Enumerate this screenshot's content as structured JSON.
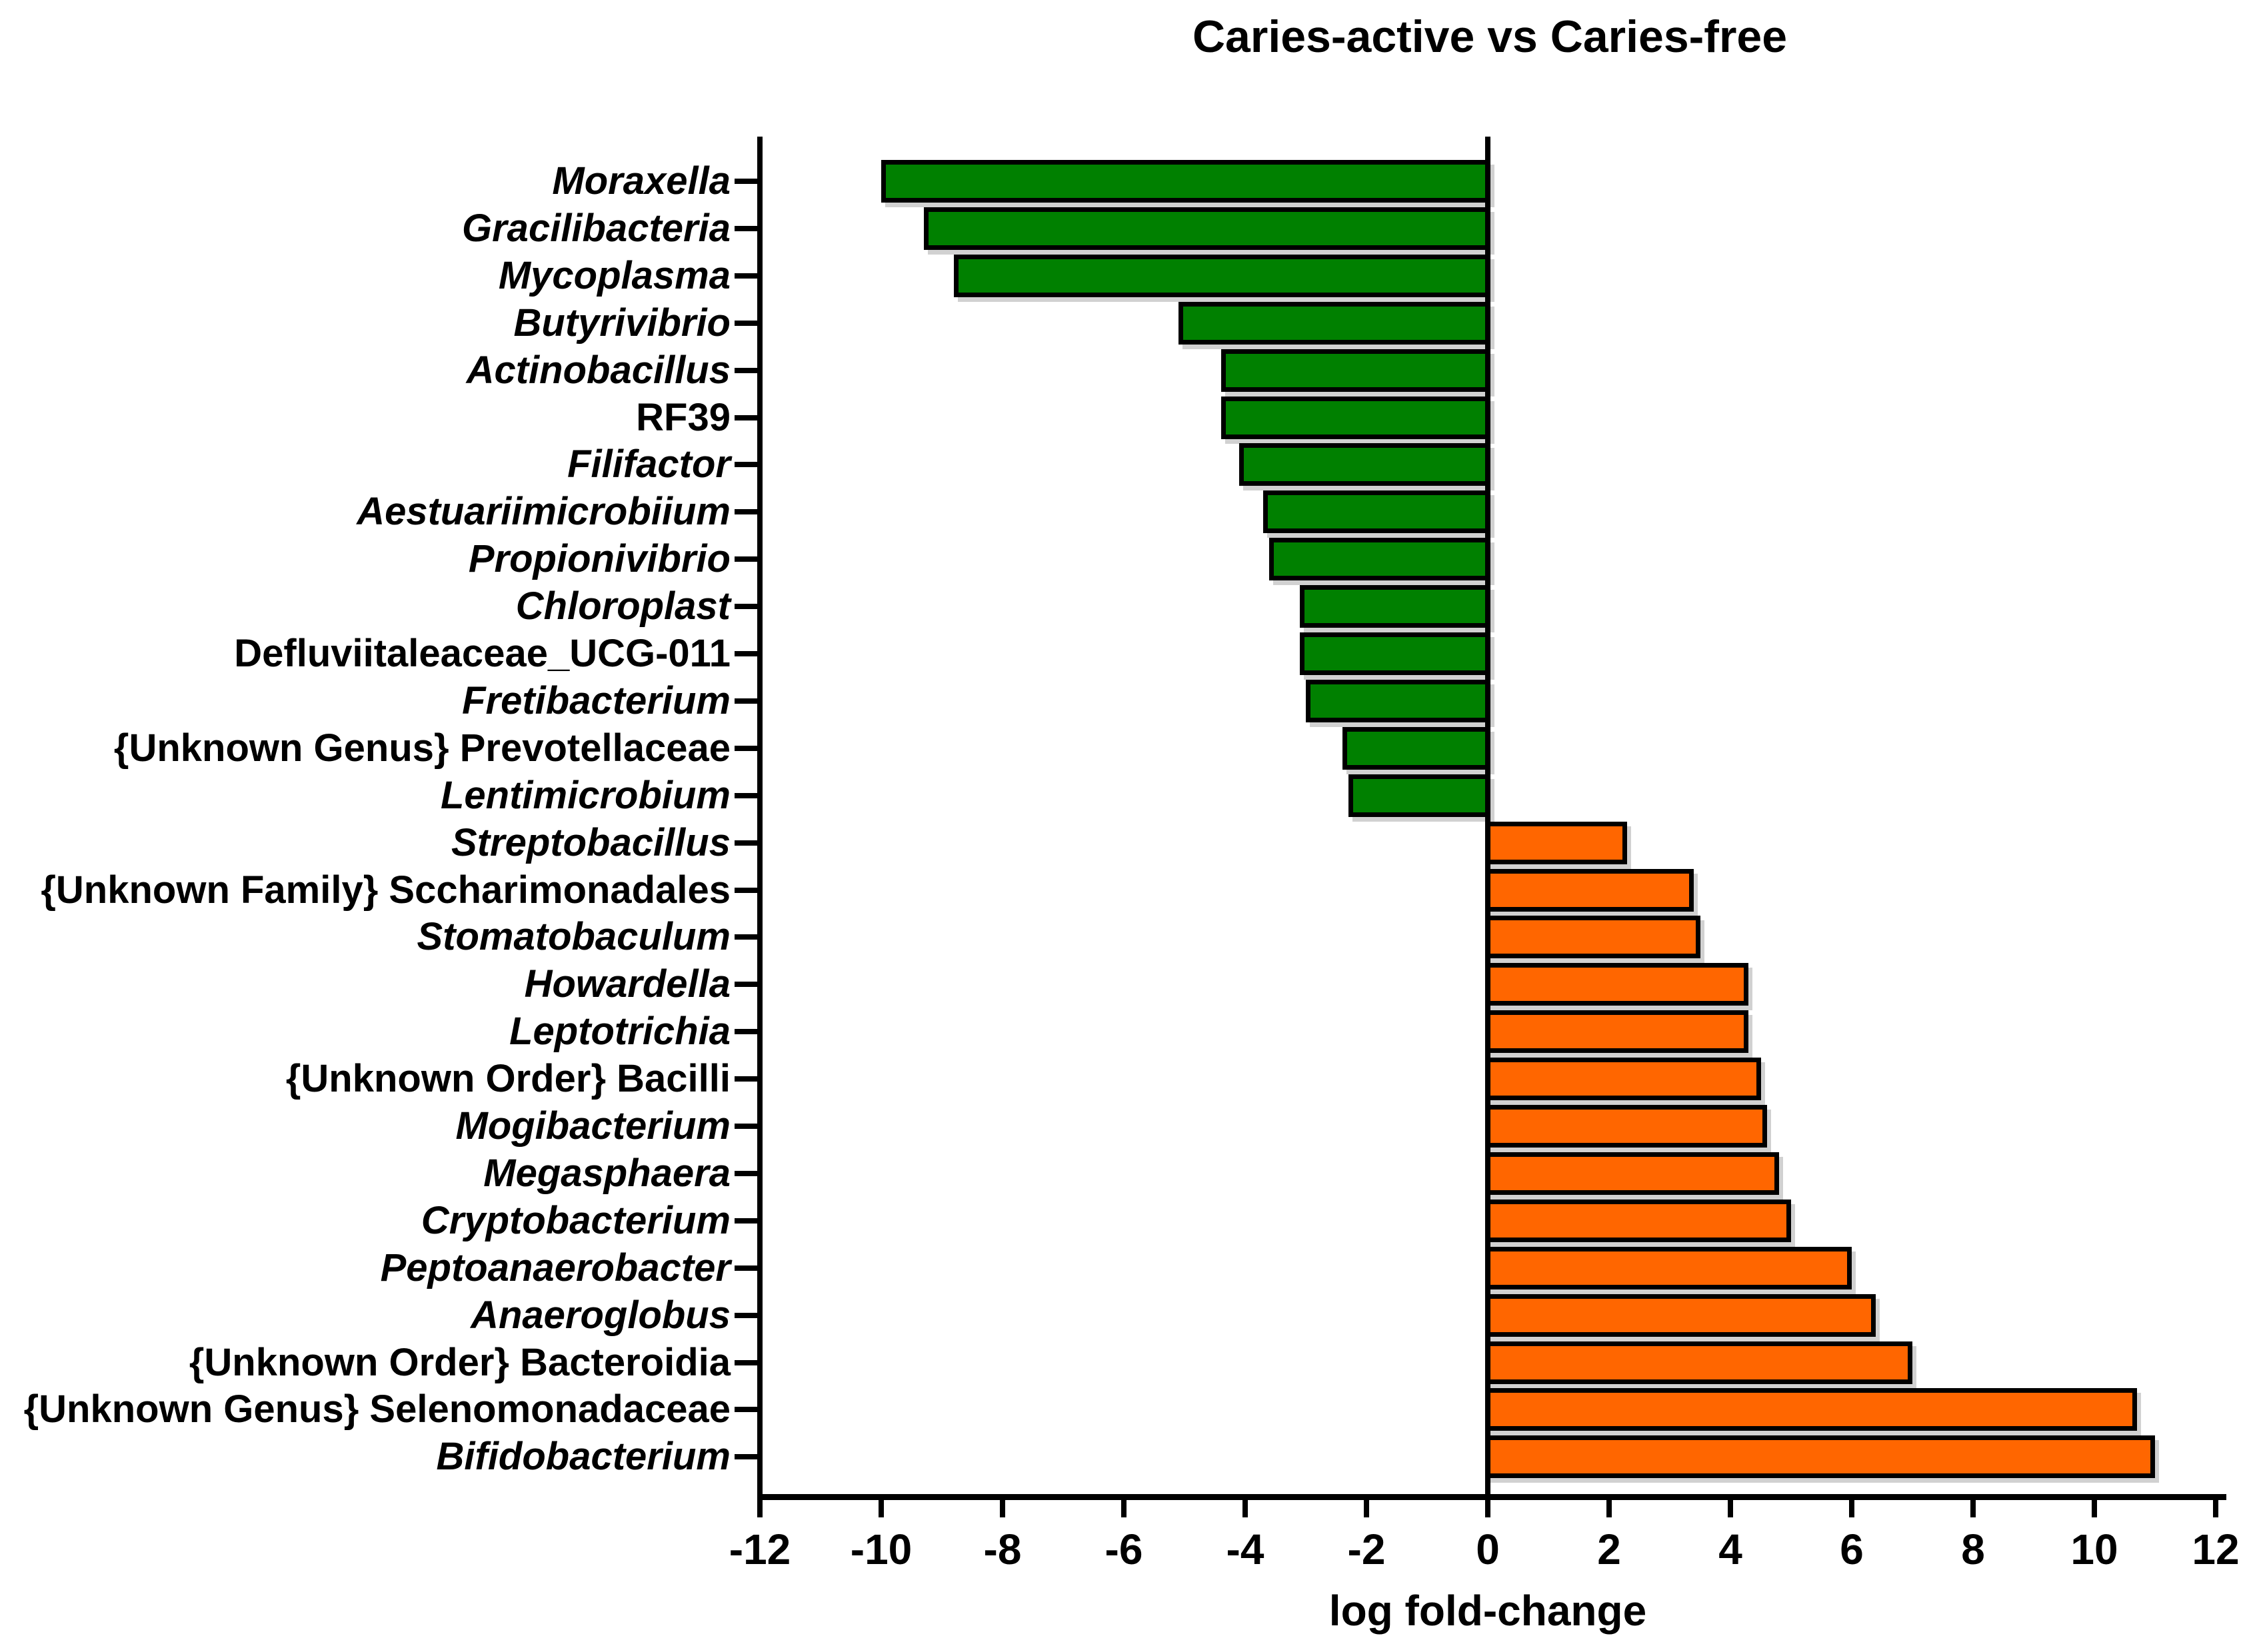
{
  "chart_data": {
    "type": "bar",
    "orientation": "horizontal",
    "title": "Caries-active vs Caries-free",
    "xlabel": "log fold-change",
    "xlim": [
      -12,
      12
    ],
    "xticks": [
      -12,
      -10,
      -8,
      -6,
      -4,
      -2,
      0,
      2,
      4,
      6,
      8,
      10,
      12
    ],
    "grid": false,
    "legend": "none",
    "colors": {
      "negative_bar": "#008000",
      "positive_bar": "#FF6600",
      "bar_border": "#000000",
      "axis": "#000000",
      "background": "#ffffff"
    },
    "bars": [
      {
        "label": "Moraxella",
        "value": -10.0,
        "italic": true
      },
      {
        "label": "Gracilibacteria",
        "value": -9.3,
        "italic": true
      },
      {
        "label": "Mycoplasma",
        "value": -8.8,
        "italic": true
      },
      {
        "label": "Butyrivibrio",
        "value": -5.1,
        "italic": true
      },
      {
        "label": "Actinobacillus",
        "value": -4.4,
        "italic": true
      },
      {
        "label": "RF39",
        "value": -4.4,
        "italic": false
      },
      {
        "label": "Filifactor",
        "value": -4.1,
        "italic": true
      },
      {
        "label": "Aestuariimicrobiium",
        "value": -3.7,
        "italic": true
      },
      {
        "label": "Propionivibrio",
        "value": -3.6,
        "italic": true
      },
      {
        "label": "Chloroplast",
        "value": -3.1,
        "italic": true
      },
      {
        "label": "Defluviitaleaceae_UCG-011",
        "value": -3.1,
        "italic": false
      },
      {
        "label": "Fretibacterium",
        "value": -3.0,
        "italic": true
      },
      {
        "label": "{Unknown Genus} Prevotellaceae",
        "value": -2.4,
        "italic": false
      },
      {
        "label": "Lentimicrobium",
        "value": -2.3,
        "italic": true
      },
      {
        "label": "Streptobacillus",
        "value": 2.3,
        "italic": true
      },
      {
        "label": "{Unknown Family} Sccharimonadales",
        "value": 3.4,
        "italic": false
      },
      {
        "label": "Stomatobaculum",
        "value": 3.5,
        "italic": true
      },
      {
        "label": "Howardella",
        "value": 4.3,
        "italic": true
      },
      {
        "label": "Leptotrichia",
        "value": 4.3,
        "italic": true
      },
      {
        "label": "{Unknown Order} Bacilli",
        "value": 4.5,
        "italic": false
      },
      {
        "label": "Mogibacterium",
        "value": 4.6,
        "italic": true
      },
      {
        "label": "Megasphaera",
        "value": 4.8,
        "italic": true
      },
      {
        "label": "Cryptobacterium",
        "value": 5.0,
        "italic": true
      },
      {
        "label": "Peptoanaerobacter",
        "value": 6.0,
        "italic": true
      },
      {
        "label": "Anaeroglobus",
        "value": 6.4,
        "italic": true
      },
      {
        "label": "{Unknown Order} Bacteroidia",
        "value": 7.0,
        "italic": false
      },
      {
        "label": "{Unknown Genus} Selenomonadaceae",
        "value": 10.7,
        "italic": false
      },
      {
        "label": "Bifidobacterium",
        "value": 11.0,
        "italic": true
      }
    ]
  }
}
